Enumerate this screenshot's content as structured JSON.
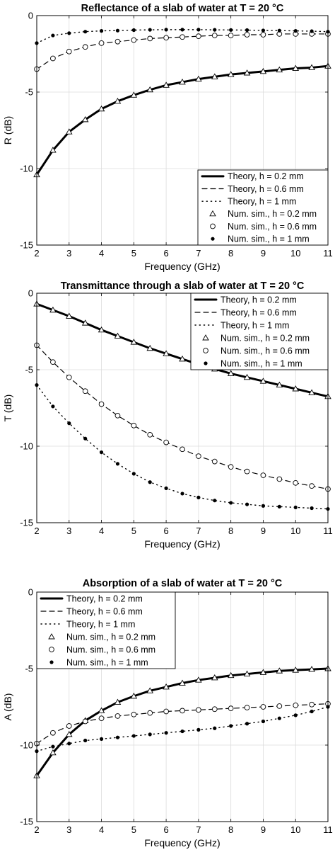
{
  "chart_data": [
    {
      "type": "line",
      "title": "Reflectance of a slab of water at T = 20  °C",
      "xlabel": "Frequency (GHz)",
      "ylabel": "R (dB)",
      "xlim": [
        2,
        11
      ],
      "ylim": [
        -15,
        0
      ],
      "xticks": [
        "2",
        "3",
        "4",
        "5",
        "6",
        "7",
        "8",
        "9",
        "10",
        "11"
      ],
      "yticks": [
        "0",
        "-5",
        "-10",
        "-15"
      ],
      "grid": true,
      "legend_position": "lower-right",
      "legend": [
        "Theory, h = 0.2 mm",
        "Theory, h = 0.6 mm",
        "Theory, h = 1 mm",
        "Num. sim., h = 0.2 mm",
        "Num. sim., h = 0.6 mm",
        "Num. sim., h = 1 mm"
      ],
      "x": [
        2,
        2.5,
        3,
        3.5,
        4,
        4.5,
        5,
        5.5,
        6,
        6.5,
        7,
        7.5,
        8,
        8.5,
        9,
        9.5,
        10,
        10.5,
        11
      ],
      "series": [
        {
          "name": "h = 0.2 mm",
          "values": [
            -10.4,
            -8.8,
            -7.6,
            -6.8,
            -6.1,
            -5.6,
            -5.2,
            -4.85,
            -4.55,
            -4.35,
            -4.15,
            -4.0,
            -3.85,
            -3.75,
            -3.65,
            -3.55,
            -3.45,
            -3.4,
            -3.3
          ]
        },
        {
          "name": "h = 0.6 mm",
          "values": [
            -3.5,
            -2.8,
            -2.35,
            -2.05,
            -1.8,
            -1.7,
            -1.6,
            -1.5,
            -1.45,
            -1.4,
            -1.35,
            -1.3,
            -1.3,
            -1.25,
            -1.25,
            -1.2,
            -1.2,
            -1.2,
            -1.2
          ]
        },
        {
          "name": "h = 1 mm",
          "values": [
            -1.8,
            -1.3,
            -1.15,
            -1.05,
            -1.0,
            -0.98,
            -0.95,
            -0.93,
            -0.92,
            -0.92,
            -0.92,
            -0.93,
            -0.94,
            -0.95,
            -0.97,
            -0.98,
            -1.0,
            -1.02,
            -1.05
          ]
        }
      ]
    },
    {
      "type": "line",
      "title": "Transmittance through a slab of water at T = 20  °C",
      "xlabel": "Frequency (GHz)",
      "ylabel": "T (dB)",
      "xlim": [
        2,
        11
      ],
      "ylim": [
        -15,
        0
      ],
      "xticks": [
        "2",
        "3",
        "4",
        "5",
        "6",
        "7",
        "8",
        "9",
        "10",
        "11"
      ],
      "yticks": [
        "0",
        "-5",
        "-10",
        "-15"
      ],
      "grid": true,
      "legend_position": "top-right",
      "legend": [
        "Theory, h = 0.2 mm",
        "Theory, h = 0.6 mm",
        "Theory, h = 1 mm",
        "Num. sim., h = 0.2 mm",
        "Num. sim., h = 0.6 mm",
        "Num. sim., h = 1 mm"
      ],
      "x": [
        2,
        2.5,
        3,
        3.5,
        4,
        4.5,
        5,
        5.5,
        6,
        6.5,
        7,
        7.5,
        8,
        8.5,
        9,
        9.5,
        10,
        10.5,
        11
      ],
      "series": [
        {
          "name": "h = 0.2 mm",
          "values": [
            -0.7,
            -1.1,
            -1.5,
            -1.95,
            -2.4,
            -2.8,
            -3.2,
            -3.6,
            -3.95,
            -4.3,
            -4.65,
            -4.95,
            -5.25,
            -5.5,
            -5.75,
            -6.0,
            -6.25,
            -6.5,
            -6.75
          ]
        },
        {
          "name": "h = 0.6 mm",
          "values": [
            -3.4,
            -4.5,
            -5.5,
            -6.4,
            -7.25,
            -8.0,
            -8.65,
            -9.25,
            -9.75,
            -10.2,
            -10.65,
            -11.0,
            -11.35,
            -11.65,
            -11.9,
            -12.15,
            -12.4,
            -12.6,
            -12.8
          ]
        },
        {
          "name": "h = 1 mm",
          "values": [
            -6.0,
            -7.4,
            -8.5,
            -9.5,
            -10.4,
            -11.15,
            -11.8,
            -12.35,
            -12.75,
            -13.1,
            -13.35,
            -13.55,
            -13.7,
            -13.8,
            -13.9,
            -13.95,
            -14.0,
            -14.05,
            -14.1
          ]
        }
      ]
    },
    {
      "type": "line",
      "title": "Absorption of a slab of water at T = 20  °C",
      "xlabel": "Frequency (GHz)",
      "ylabel": "A (dB)",
      "xlim": [
        2,
        11
      ],
      "ylim": [
        -15,
        0
      ],
      "xticks": [
        "2",
        "3",
        "4",
        "5",
        "6",
        "7",
        "8",
        "9",
        "10",
        "11"
      ],
      "yticks": [
        "0",
        "-5",
        "-10",
        "-15"
      ],
      "grid": true,
      "legend_position": "top-left",
      "legend": [
        "Theory, h = 0.2 mm",
        "Theory, h = 0.6 mm",
        "Theory, h = 1 mm",
        "Num. sim., h = 0.2 mm",
        "Num. sim., h = 0.6 mm",
        "Num. sim., h = 1 mm"
      ],
      "x": [
        2,
        2.5,
        3,
        3.5,
        4,
        4.5,
        5,
        5.5,
        6,
        6.5,
        7,
        7.5,
        8,
        8.5,
        9,
        9.5,
        10,
        10.5,
        11
      ],
      "series": [
        {
          "name": "h = 0.2 mm",
          "values": [
            -12.0,
            -10.5,
            -9.3,
            -8.4,
            -7.75,
            -7.2,
            -6.8,
            -6.45,
            -6.2,
            -5.95,
            -5.75,
            -5.6,
            -5.45,
            -5.35,
            -5.25,
            -5.15,
            -5.1,
            -5.05,
            -5.0
          ]
        },
        {
          "name": "h = 0.6 mm",
          "values": [
            -9.9,
            -9.2,
            -8.75,
            -8.45,
            -8.25,
            -8.1,
            -8.0,
            -7.9,
            -7.8,
            -7.75,
            -7.7,
            -7.65,
            -7.6,
            -7.55,
            -7.5,
            -7.45,
            -7.4,
            -7.35,
            -7.3
          ]
        },
        {
          "name": "h = 1 mm",
          "values": [
            -10.4,
            -10.1,
            -9.9,
            -9.7,
            -9.6,
            -9.5,
            -9.4,
            -9.3,
            -9.2,
            -9.1,
            -9.0,
            -8.9,
            -8.75,
            -8.6,
            -8.45,
            -8.25,
            -8.05,
            -7.8,
            -7.5
          ]
        }
      ]
    }
  ]
}
